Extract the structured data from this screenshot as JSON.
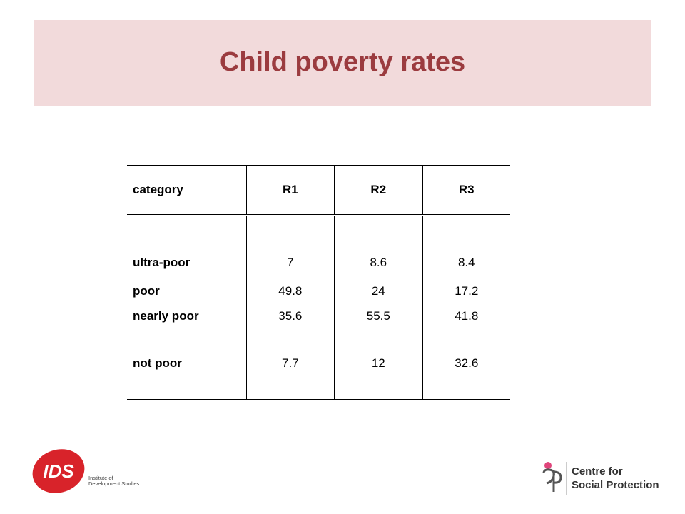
{
  "slide": {
    "title": "Child poverty rates"
  },
  "table": {
    "headers": [
      "category",
      "R1",
      "R2",
      "R3"
    ],
    "rows": [
      {
        "category": "ultra-poor",
        "R1": "7",
        "R2": "8.6",
        "R3": "8.4"
      },
      {
        "category": "poor",
        "R1": "49.8",
        "R2": "24",
        "R3": "17.2"
      },
      {
        "category": "nearly poor",
        "R1": "35.6",
        "R2": "55.5",
        "R3": "41.8"
      },
      {
        "category": "not poor",
        "R1": "7.7",
        "R2": "12",
        "R3": "32.6"
      }
    ]
  },
  "logos": {
    "ids": {
      "mark": "IDS",
      "line1": "Institute of",
      "line2": "Development Studies"
    },
    "csp": {
      "line1": "Centre for",
      "line2": "Social Protection"
    }
  },
  "colors": {
    "title": "#9b3b3f",
    "title_band": "#f2dadb",
    "ids_red": "#d8232a",
    "csp_pink": "#e0457b"
  }
}
